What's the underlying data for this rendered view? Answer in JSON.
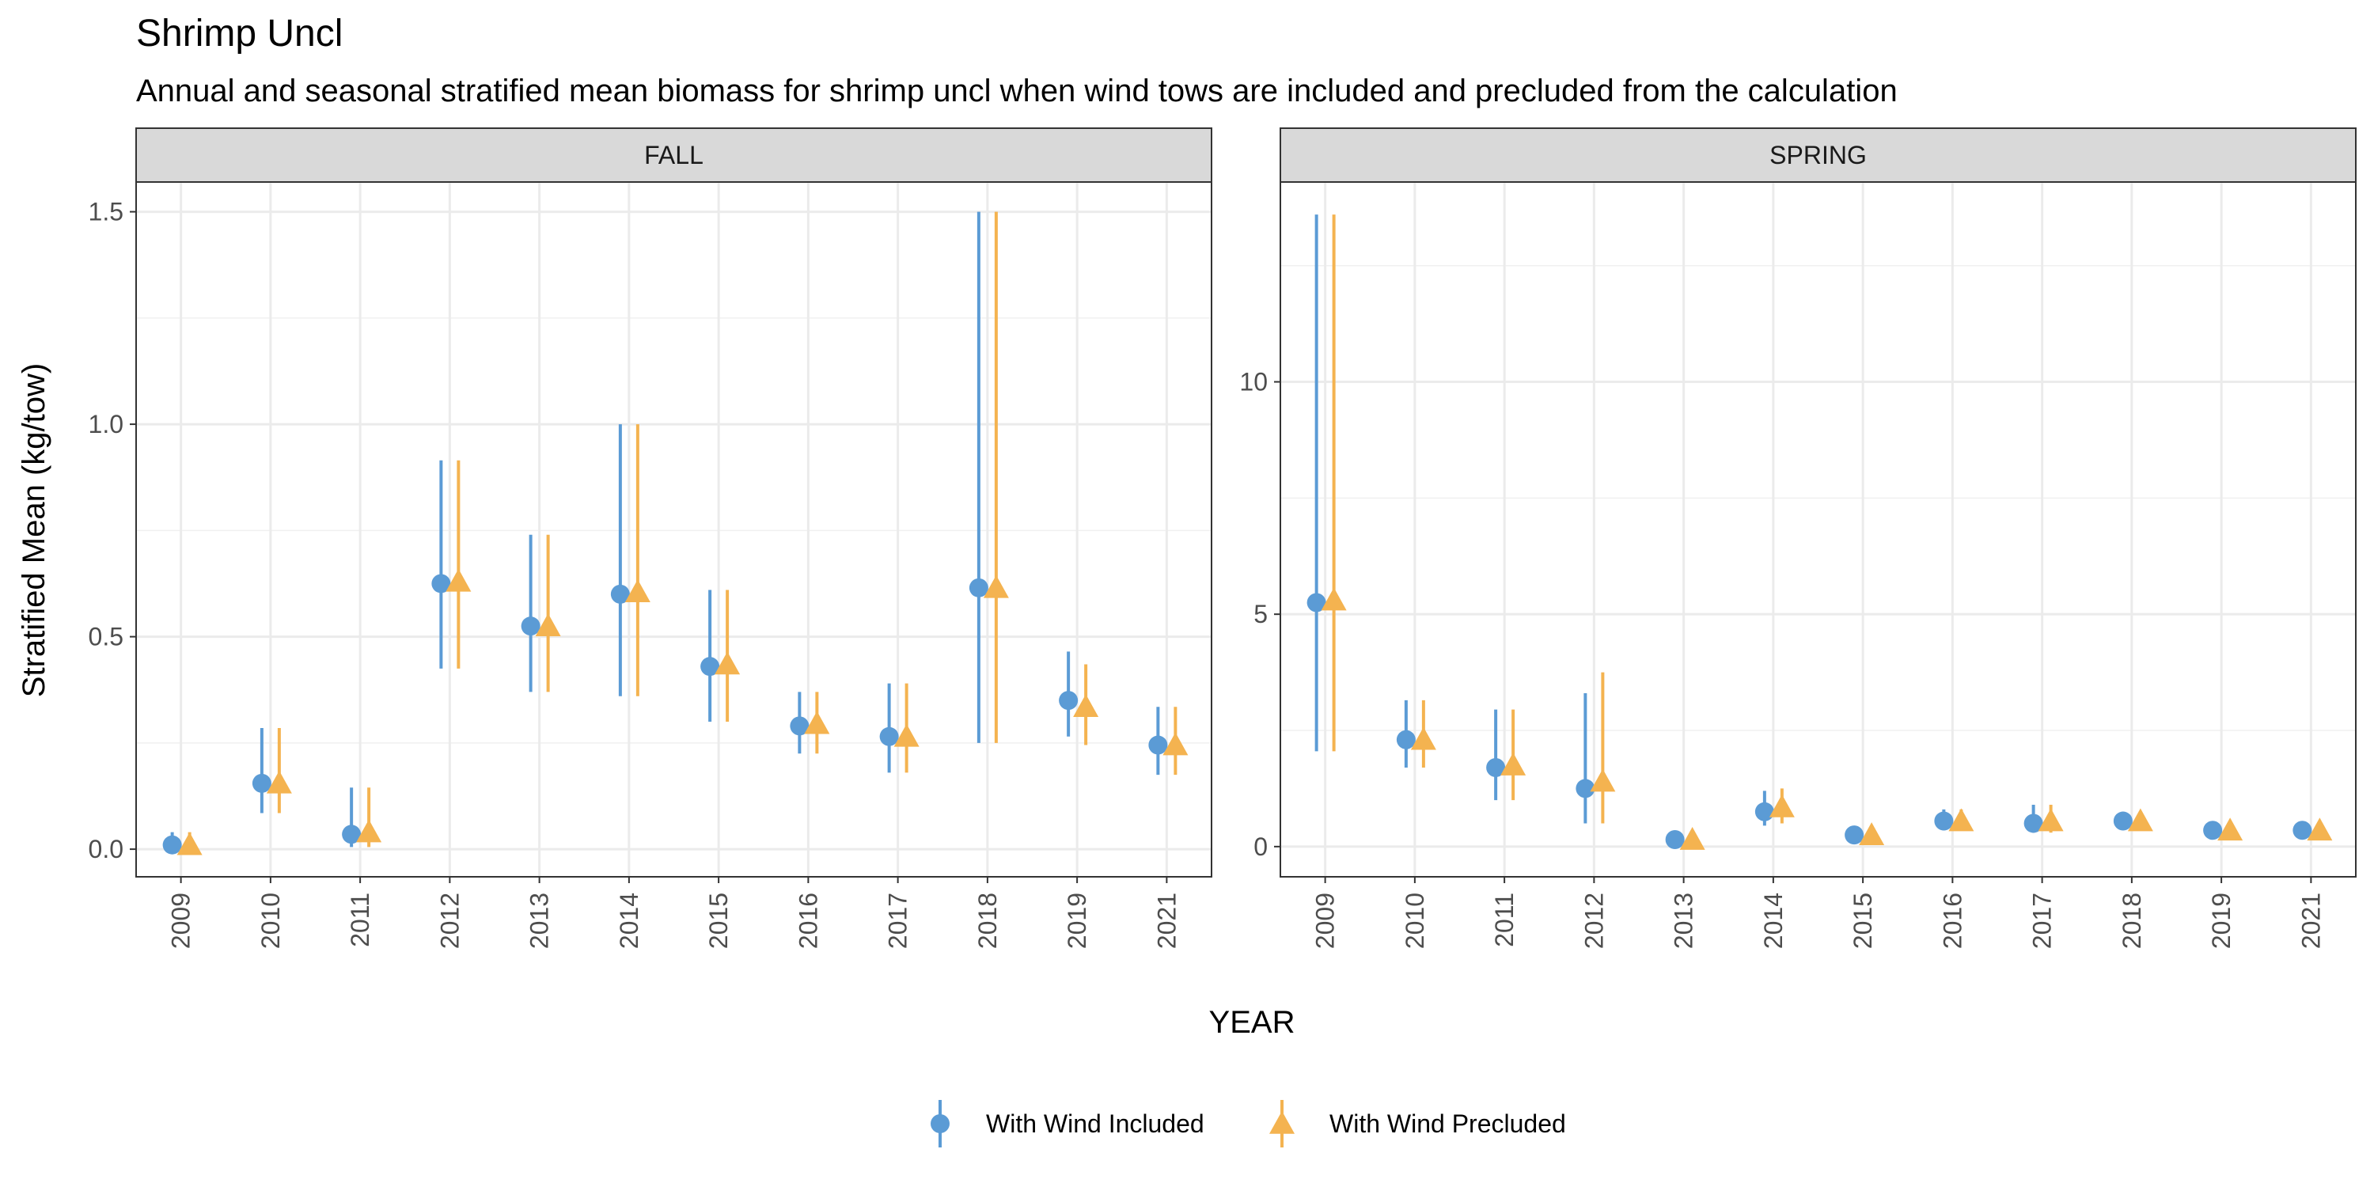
{
  "chart_data": {
    "type": "scatter",
    "title": "Shrimp Uncl",
    "subtitle": "Annual and seasonal stratified mean biomass for shrimp uncl when wind tows are included and precluded from the calculation",
    "xlabel": "YEAR",
    "ylabel": "Stratified Mean (kg/tow)",
    "legend_position": "bottom",
    "grid": true,
    "categories": [
      "2009",
      "2010",
      "2011",
      "2012",
      "2013",
      "2014",
      "2015",
      "2016",
      "2017",
      "2018",
      "2019",
      "2021"
    ],
    "series_meta": [
      {
        "name": "With Wind Included",
        "color": "#5b9bd5",
        "marker": "circle"
      },
      {
        "name": "With Wind Precluded",
        "color": "#f4b350",
        "marker": "triangle"
      }
    ],
    "panels": [
      {
        "label": "FALL",
        "ylim": [
          -0.065,
          1.57
        ],
        "yticks": [
          0.0,
          0.5,
          1.0,
          1.5
        ],
        "ytick_labels": [
          "0.0",
          "0.5",
          "1.0",
          "1.5"
        ],
        "yminor": [
          0.25,
          0.75,
          1.25
        ],
        "series": [
          {
            "name": "With Wind Included",
            "values": [
              0.01,
              0.155,
              0.035,
              0.625,
              0.525,
              0.6,
              0.43,
              0.29,
              0.265,
              0.615,
              0.35,
              0.245
            ],
            "lower": [
              0.0,
              0.085,
              0.005,
              0.425,
              0.37,
              0.36,
              0.3,
              0.225,
              0.18,
              0.25,
              0.265,
              0.175
            ],
            "upper": [
              0.04,
              0.285,
              0.145,
              0.915,
              0.74,
              1.0,
              0.61,
              0.37,
              0.39,
              1.5,
              0.465,
              0.335
            ]
          },
          {
            "name": "With Wind Precluded",
            "values": [
              0.01,
              0.155,
              0.04,
              0.63,
              0.525,
              0.605,
              0.435,
              0.295,
              0.265,
              0.615,
              0.335,
              0.245
            ],
            "lower": [
              0.0,
              0.085,
              0.005,
              0.425,
              0.37,
              0.36,
              0.3,
              0.225,
              0.18,
              0.25,
              0.245,
              0.175
            ],
            "upper": [
              0.04,
              0.285,
              0.145,
              0.915,
              0.74,
              1.0,
              0.61,
              0.37,
              0.39,
              1.5,
              0.435,
              0.335
            ]
          }
        ]
      },
      {
        "label": "SPRING",
        "ylim": [
          -0.65,
          14.3
        ],
        "yticks": [
          0,
          5,
          10
        ],
        "ytick_labels": [
          "0",
          "5",
          "10"
        ],
        "yminor": [
          2.5,
          7.5,
          12.5
        ],
        "series": [
          {
            "name": "With Wind Included",
            "values": [
              5.25,
              2.3,
              1.7,
              1.25,
              0.15,
              0.75,
              0.25,
              0.55,
              0.5,
              0.55,
              0.35,
              0.35
            ],
            "lower": [
              2.05,
              1.7,
              1.0,
              0.5,
              0.05,
              0.45,
              0.18,
              0.35,
              0.3,
              0.45,
              0.25,
              0.25
            ],
            "upper": [
              13.6,
              3.15,
              2.95,
              3.3,
              0.3,
              1.2,
              0.35,
              0.8,
              0.9,
              0.7,
              0.5,
              0.45
            ]
          },
          {
            "name": "With Wind Precluded",
            "values": [
              5.3,
              2.3,
              1.75,
              1.4,
              0.15,
              0.85,
              0.25,
              0.55,
              0.55,
              0.55,
              0.35,
              0.35
            ],
            "lower": [
              2.05,
              1.7,
              1.0,
              0.5,
              0.05,
              0.5,
              0.18,
              0.35,
              0.3,
              0.45,
              0.25,
              0.25
            ],
            "upper": [
              13.6,
              3.15,
              2.95,
              3.75,
              0.3,
              1.25,
              0.35,
              0.8,
              0.9,
              0.7,
              0.5,
              0.45
            ]
          }
        ]
      }
    ]
  }
}
